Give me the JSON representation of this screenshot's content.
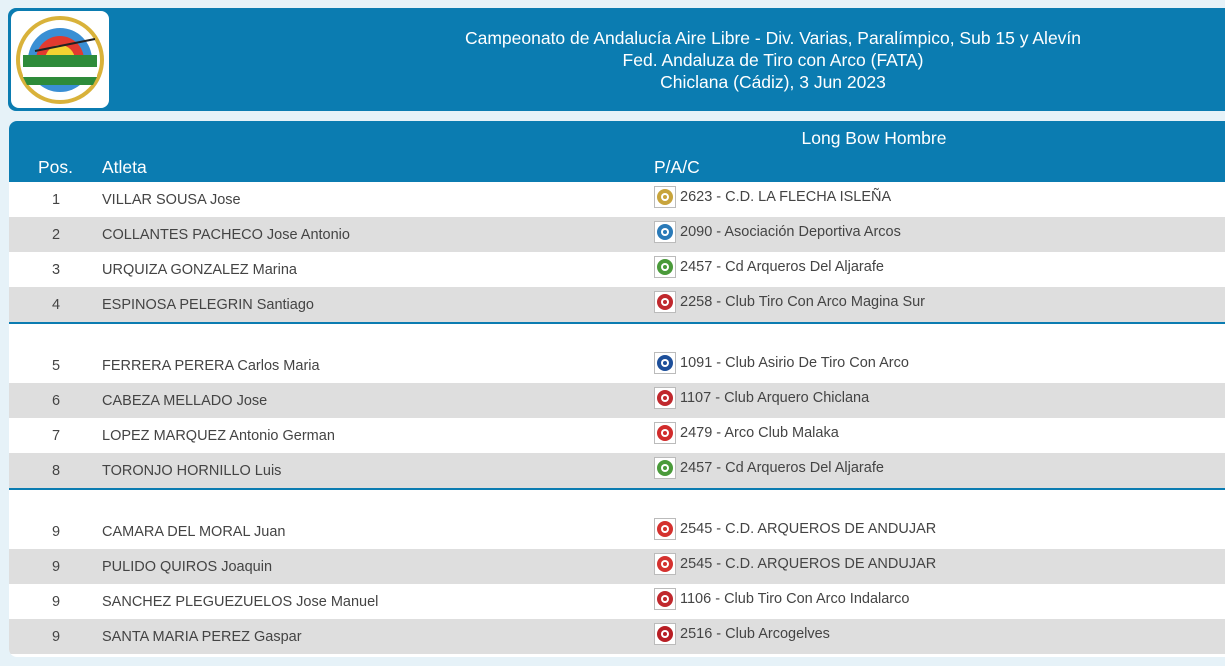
{
  "header": {
    "line1": "Campeonato de Andalucía Aire Libre - Div. Varias, Paralímpico, Sub 15 y Alevín",
    "line2": "Fed. Andaluza de Tiro con Arco (FATA)",
    "line3": "Chiclana (Cádiz), 3 Jun 2023",
    "logo_icon": "archery-target-logo",
    "colors": {
      "primary": "#0b7cb1",
      "alt_row": "#dedede",
      "background": "#e6f2f8"
    }
  },
  "table": {
    "category": "Long Bow Hombre",
    "col_pos": "Pos.",
    "col_athlete": "Atleta",
    "col_pac": "P/A/C",
    "groups": [
      {
        "rows": [
          {
            "pos": "1",
            "athlete": "VILLAR SOUSA Jose",
            "club": "2623 - C.D. LA FLECHA ISLEÑA",
            "icon": "club-flecha-islena-icon",
            "color": "#c8a43c"
          },
          {
            "pos": "2",
            "athlete": "COLLANTES PACHECO Jose Antonio",
            "club": "2090 - Asociación Deportiva Arcos",
            "icon": "club-arcos-icon",
            "color": "#2a7ab8"
          },
          {
            "pos": "3",
            "athlete": "URQUIZA GONZALEZ Marina",
            "club": "2457 - Cd Arqueros Del Aljarafe",
            "icon": "club-aljarafe-icon",
            "color": "#4a9a3a"
          },
          {
            "pos": "4",
            "athlete": "ESPINOSA PELEGRIN Santiago",
            "club": "2258 - Club Tiro Con Arco Magina Sur",
            "icon": "club-magina-sur-icon",
            "color": "#c0282d"
          }
        ]
      },
      {
        "rows": [
          {
            "pos": "5",
            "athlete": "FERRERA PERERA Carlos Maria",
            "club": "1091 - Club Asirio De Tiro Con Arco",
            "icon": "club-asirio-icon",
            "color": "#1d4f9a"
          },
          {
            "pos": "6",
            "athlete": "CABEZA MELLADO Jose",
            "club": "1107 - Club Arquero Chiclana",
            "icon": "club-chiclana-icon",
            "color": "#c0282d"
          },
          {
            "pos": "7",
            "athlete": "LOPEZ MARQUEZ Antonio German",
            "club": "2479 - Arco Club Malaka",
            "icon": "club-malaka-icon",
            "color": "#d12b2b"
          },
          {
            "pos": "8",
            "athlete": "TORONJO HORNILLO Luis",
            "club": "2457 - Cd Arqueros Del Aljarafe",
            "icon": "club-aljarafe-icon",
            "color": "#4a9a3a"
          }
        ]
      },
      {
        "rows": [
          {
            "pos": "9",
            "athlete": "CAMARA DEL MORAL Juan",
            "club": "2545 - C.D. ARQUEROS DE ANDUJAR",
            "icon": "club-andujar-icon",
            "color": "#d4312e"
          },
          {
            "pos": "9",
            "athlete": "PULIDO QUIROS Joaquin",
            "club": "2545 - C.D. ARQUEROS DE ANDUJAR",
            "icon": "club-andujar-icon",
            "color": "#d4312e"
          },
          {
            "pos": "9",
            "athlete": "SANCHEZ PLEGUEZUELOS Jose Manuel",
            "club": "1106 - Club Tiro Con Arco Indalarco",
            "icon": "club-indalarco-icon",
            "color": "#c0282d"
          },
          {
            "pos": "9",
            "athlete": "SANTA MARIA PEREZ Gaspar",
            "club": "2516 - Club Arcogelves",
            "icon": "club-arcogelves-icon",
            "color": "#b81e24"
          }
        ]
      }
    ]
  }
}
